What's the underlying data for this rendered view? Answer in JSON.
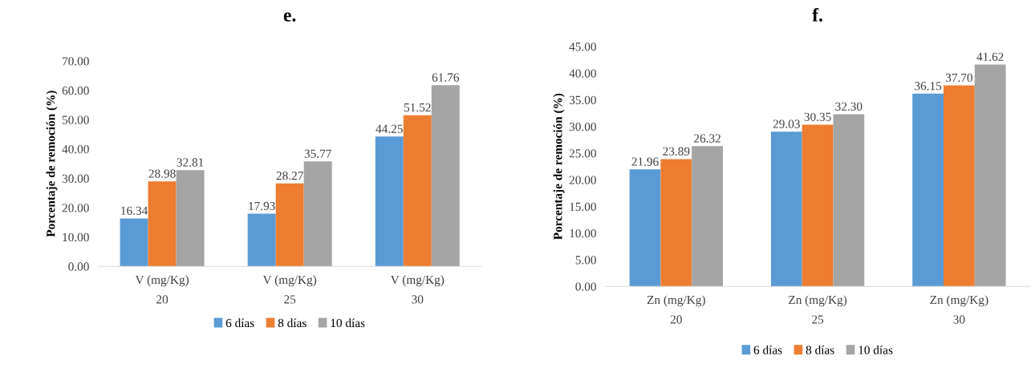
{
  "chart_data": [
    {
      "type": "bar",
      "title": "e.",
      "ylabel": "Porcentaje de remoción (%)",
      "categories": [
        "V (mg/Kg)\n20",
        "V (mg/Kg)\n25",
        "V (mg/Kg)\n30"
      ],
      "series": [
        {
          "name": "6 días",
          "color": "#5b9bd5",
          "values": [
            16.34,
            17.93,
            44.25
          ],
          "value_labels": [
            "16.34",
            "17.93",
            "44.25"
          ]
        },
        {
          "name": "8 días",
          "color": "#ed7d31",
          "values": [
            28.98,
            28.27,
            51.52
          ],
          "value_labels": [
            "28.98",
            "28.27",
            "51.52"
          ]
        },
        {
          "name": "10 días",
          "color": "#a5a5a5",
          "values": [
            32.81,
            35.77,
            61.76
          ],
          "value_labels": [
            "32.81",
            "35.77",
            "61.76"
          ]
        }
      ],
      "ylim": [
        0,
        70
      ],
      "yticks": [
        {
          "value": 0,
          "label": "0.00"
        },
        {
          "value": 10,
          "label": "10.00"
        },
        {
          "value": 20,
          "label": "20.00"
        },
        {
          "value": 30,
          "label": "30.00"
        },
        {
          "value": 40,
          "label": "40.00"
        },
        {
          "value": 50,
          "label": "50.00"
        },
        {
          "value": 60,
          "label": "60.00"
        },
        {
          "value": 70,
          "label": "70.00"
        }
      ],
      "legend": "bottom"
    },
    {
      "type": "bar",
      "title": "f.",
      "ylabel": "Porcentaje de remoción (%)",
      "categories": [
        "Zn (mg/Kg)\n20",
        "Zn (mg/Kg)\n25",
        "Zn (mg/Kg)\n30"
      ],
      "series": [
        {
          "name": "6 días",
          "color": "#5b9bd5",
          "values": [
            21.96,
            29.03,
            36.15
          ],
          "value_labels": [
            "21.96",
            "29.03",
            "36.15"
          ]
        },
        {
          "name": "8 días",
          "color": "#ed7d31",
          "values": [
            23.89,
            30.35,
            37.7
          ],
          "value_labels": [
            "23.89",
            "30.35",
            "37.70"
          ]
        },
        {
          "name": "10 días",
          "color": "#a5a5a5",
          "values": [
            26.32,
            32.3,
            41.62
          ],
          "value_labels": [
            "26.32",
            "32.30",
            "41.62"
          ]
        }
      ],
      "ylim": [
        0,
        45
      ],
      "yticks": [
        {
          "value": 0,
          "label": "0.00"
        },
        {
          "value": 5,
          "label": "5.00"
        },
        {
          "value": 10,
          "label": "10.00"
        },
        {
          "value": 15,
          "label": "15.00"
        },
        {
          "value": 20,
          "label": "20.00"
        },
        {
          "value": 25,
          "label": "25.00"
        },
        {
          "value": 30,
          "label": "30.00"
        },
        {
          "value": 35,
          "label": "35.00"
        },
        {
          "value": 40,
          "label": "40.00"
        },
        {
          "value": 45,
          "label": "45.00"
        }
      ],
      "legend": "bottom"
    }
  ]
}
